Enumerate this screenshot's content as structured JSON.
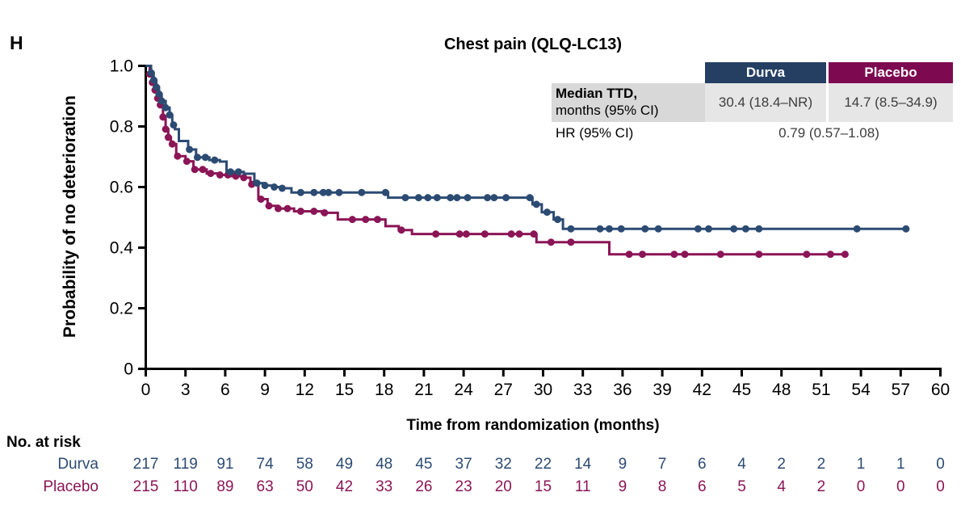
{
  "panel_label": "H",
  "title": "Chest pain (QLQ-LC13)",
  "colors": {
    "durva": "#2C4B73",
    "placebo": "#8B1556",
    "durva_header_bg": "#253F63",
    "placebo_header_bg": "#7D0A51",
    "shaded_row_bg": "#D8D8D8",
    "shaded_value_bg": "#E6E6E6",
    "axis": "#000000"
  },
  "stats": {
    "header": {
      "durva": "Durva",
      "placebo": "Placebo"
    },
    "median_row": {
      "label_line1": "Median TTD,",
      "label_line2": "months (95% CI)",
      "durva": "30.4 (18.4–NR)",
      "placebo": "14.7 (8.5–34.9)"
    },
    "hr_row": {
      "label": "HR (95% CI)",
      "value": "0.79 (0.57–1.08)"
    }
  },
  "chart_data": {
    "type": "line",
    "subtype": "kaplan-meier-step",
    "title": "Chest pain (QLQ-LC13)",
    "xlabel": "Time from randomization (months)",
    "ylabel": "Probability of no deterioration",
    "xlim": [
      0,
      60
    ],
    "ylim": [
      0,
      1
    ],
    "xticks": [
      0,
      3,
      6,
      9,
      12,
      15,
      18,
      21,
      24,
      27,
      30,
      33,
      36,
      39,
      42,
      45,
      48,
      51,
      54,
      57,
      60
    ],
    "yticks": [
      {
        "v": 1.0,
        "label": "1.0"
      },
      {
        "v": 0.8,
        "label": "0.8"
      },
      {
        "v": 0.6,
        "label": "0.6"
      },
      {
        "v": 0.4,
        "label": "0.4"
      },
      {
        "v": 0.2,
        "label": "0.2"
      },
      {
        "v": 0.0,
        "label": "0"
      }
    ],
    "grid": false,
    "legend_position": "table-top-right",
    "series": [
      {
        "name": "Durva",
        "color": "#2C4B73",
        "end": 57.5,
        "points": [
          [
            0,
            1.0
          ],
          [
            0.4,
            0.977
          ],
          [
            0.6,
            0.953
          ],
          [
            0.8,
            0.93
          ],
          [
            1.0,
            0.907
          ],
          [
            1.2,
            0.884
          ],
          [
            1.5,
            0.862
          ],
          [
            1.8,
            0.838
          ],
          [
            2.0,
            0.805
          ],
          [
            2.2,
            0.791
          ],
          [
            2.5,
            0.752
          ],
          [
            3.2,
            0.724
          ],
          [
            3.8,
            0.698
          ],
          [
            4.8,
            0.689
          ],
          [
            5.6,
            0.684
          ],
          [
            6.1,
            0.65
          ],
          [
            7.4,
            0.644
          ],
          [
            8.2,
            0.613
          ],
          [
            9.0,
            0.605
          ],
          [
            9.7,
            0.6
          ],
          [
            10.3,
            0.596
          ],
          [
            11.0,
            0.582
          ],
          [
            18.3,
            0.565
          ],
          [
            29.2,
            0.543
          ],
          [
            29.9,
            0.517
          ],
          [
            30.8,
            0.493
          ],
          [
            31.5,
            0.462
          ]
        ],
        "censor_marks": [
          0.4,
          0.6,
          0.8,
          1.0,
          1.2,
          1.5,
          1.8,
          2.1,
          3.3,
          3.9,
          4.5,
          5.2,
          6.4,
          7.0,
          8.4,
          9.0,
          9.7,
          10.3,
          11.7,
          12.7,
          13.4,
          13.8,
          14.6,
          16.3,
          18.1,
          19.6,
          20.6,
          21.3,
          22.0,
          23.0,
          23.5,
          24.3,
          25.8,
          26.3,
          27.2,
          29.0,
          29.5,
          30.3,
          31.1,
          32.1,
          34.3,
          35.0,
          35.9,
          37.7,
          38.7,
          41.7,
          42.5,
          44.4,
          45.3,
          46.3,
          53.7,
          57.4
        ]
      },
      {
        "name": "Placebo",
        "color": "#8B1556",
        "end": 52.9,
        "points": [
          [
            0,
            1.0
          ],
          [
            0.3,
            0.973
          ],
          [
            0.5,
            0.945
          ],
          [
            0.7,
            0.92
          ],
          [
            0.9,
            0.893
          ],
          [
            1.1,
            0.871
          ],
          [
            1.3,
            0.831
          ],
          [
            1.5,
            0.791
          ],
          [
            1.7,
            0.764
          ],
          [
            1.9,
            0.742
          ],
          [
            2.3,
            0.702
          ],
          [
            3.0,
            0.685
          ],
          [
            3.6,
            0.658
          ],
          [
            4.6,
            0.645
          ],
          [
            5.5,
            0.64
          ],
          [
            6.4,
            0.636
          ],
          [
            7.3,
            0.631
          ],
          [
            7.9,
            0.609
          ],
          [
            8.5,
            0.56
          ],
          [
            9.2,
            0.538
          ],
          [
            10.0,
            0.529
          ],
          [
            11.2,
            0.52
          ],
          [
            13.3,
            0.515
          ],
          [
            14.5,
            0.493
          ],
          [
            18.1,
            0.471
          ],
          [
            19.1,
            0.458
          ],
          [
            20.1,
            0.445
          ],
          [
            29.5,
            0.418
          ],
          [
            35.0,
            0.378
          ]
        ],
        "censor_marks": [
          0.3,
          0.5,
          0.7,
          0.9,
          1.1,
          1.3,
          1.5,
          1.7,
          2.0,
          2.4,
          3.1,
          3.7,
          4.3,
          4.9,
          5.6,
          6.2,
          6.8,
          7.4,
          8.0,
          8.7,
          9.3,
          10.0,
          10.7,
          11.7,
          12.7,
          13.5,
          15.6,
          16.6,
          17.5,
          19.3,
          21.9,
          23.7,
          24.2,
          25.6,
          27.6,
          28.2,
          29.3,
          30.6,
          32.1,
          36.5,
          37.5,
          39.9,
          40.7,
          43.4,
          46.3,
          49.9,
          51.7,
          52.8
        ]
      }
    ]
  },
  "risk_table": {
    "title": "No. at risk",
    "rows": [
      {
        "name": "Durva",
        "color": "#2C4B73",
        "values": [
          217,
          119,
          91,
          74,
          58,
          49,
          48,
          45,
          37,
          32,
          22,
          14,
          9,
          7,
          6,
          4,
          2,
          2,
          1,
          1,
          0
        ]
      },
      {
        "name": "Placebo",
        "color": "#8B1556",
        "values": [
          215,
          110,
          89,
          63,
          50,
          42,
          33,
          26,
          23,
          20,
          15,
          11,
          9,
          8,
          6,
          5,
          4,
          2,
          0,
          0,
          0
        ]
      }
    ]
  }
}
